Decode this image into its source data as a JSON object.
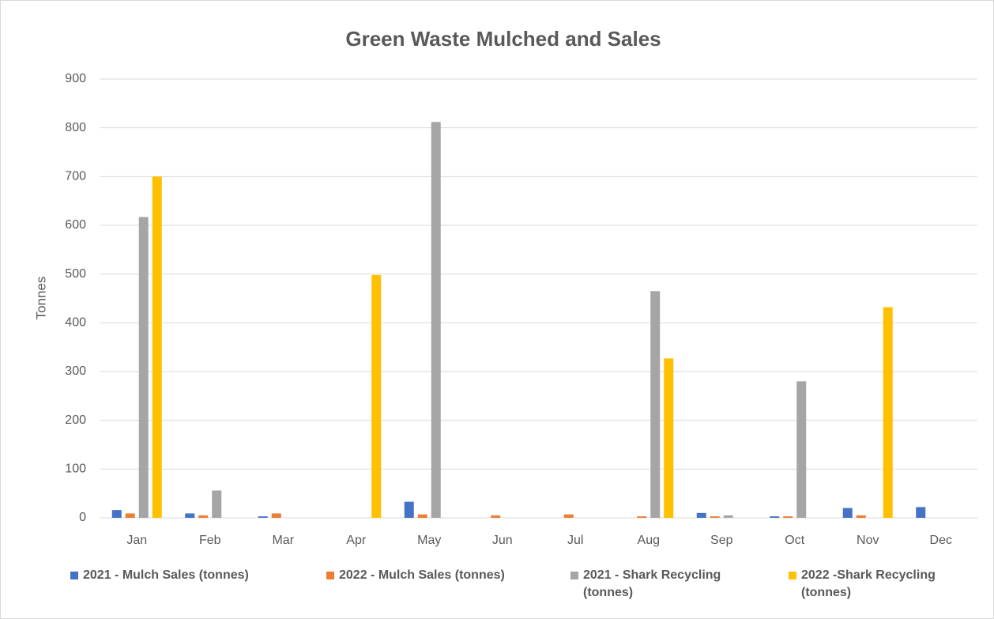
{
  "chart_data": {
    "type": "bar",
    "title": "Green Waste Mulched and Sales",
    "y_label": "Tonnes",
    "categories": [
      "Jan",
      "Feb",
      "Mar",
      "Apr",
      "May",
      "Jun",
      "Jul",
      "Aug",
      "Sep",
      "Oct",
      "Nov",
      "Dec"
    ],
    "series": [
      {
        "name": "2021 - Mulch Sales (tonnes)",
        "color": "#4472c4",
        "values": [
          16,
          9,
          3,
          0,
          33,
          0,
          0,
          0,
          10,
          3,
          20,
          22
        ]
      },
      {
        "name": "2022 - Mulch Sales (tonnes)",
        "color": "#ed7d31",
        "values": [
          9,
          5,
          9,
          0,
          7,
          5,
          7,
          3,
          3,
          3,
          5,
          0
        ]
      },
      {
        "name": "2021 - Shark Recycling (tonnes)",
        "color": "#a5a5a5",
        "values": [
          617,
          56,
          0,
          0,
          812,
          0,
          0,
          465,
          5,
          280,
          0,
          0
        ]
      },
      {
        "name": "2022 -Shark Recycling (tonnes)",
        "color": "#ffc000",
        "values": [
          700,
          0,
          0,
          498,
          0,
          0,
          0,
          327,
          0,
          0,
          432,
          0
        ]
      }
    ],
    "ylim": [
      0,
      900
    ],
    "yticks": [
      0,
      100,
      200,
      300,
      400,
      500,
      600,
      700,
      800,
      900
    ],
    "grid": true,
    "legend": "bottom"
  }
}
